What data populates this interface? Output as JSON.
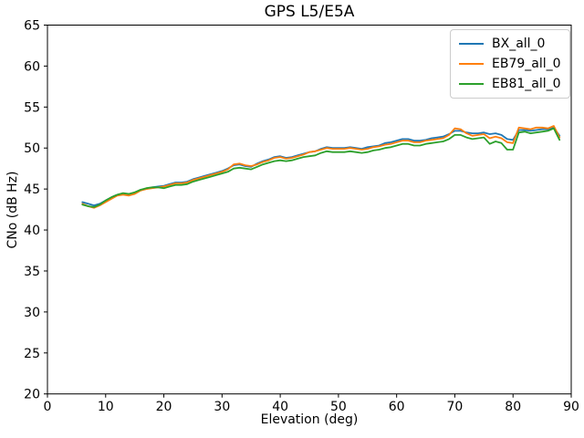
{
  "chart_data": {
    "type": "line",
    "title": "GPS L5/E5A",
    "xlabel": "Elevation (deg)",
    "ylabel": "CNo (dB Hz)",
    "xlim": [
      0,
      90
    ],
    "ylim": [
      20,
      65
    ],
    "x_ticks": [
      0,
      10,
      20,
      30,
      40,
      50,
      60,
      70,
      80,
      90
    ],
    "y_ticks": [
      20,
      25,
      30,
      35,
      40,
      45,
      50,
      55,
      60,
      65
    ],
    "grid": false,
    "legend_position": "upper right",
    "x": [
      6,
      7,
      8,
      9,
      10,
      11,
      12,
      13,
      14,
      15,
      16,
      17,
      18,
      19,
      20,
      21,
      22,
      23,
      24,
      25,
      26,
      27,
      28,
      29,
      30,
      31,
      32,
      33,
      34,
      35,
      36,
      37,
      38,
      39,
      40,
      41,
      42,
      43,
      44,
      45,
      46,
      47,
      48,
      49,
      50,
      51,
      52,
      53,
      54,
      55,
      56,
      57,
      58,
      59,
      60,
      61,
      62,
      63,
      64,
      65,
      66,
      67,
      68,
      69,
      70,
      71,
      72,
      73,
      74,
      75,
      76,
      77,
      78,
      79,
      80,
      81,
      82,
      83,
      84,
      85,
      86,
      87,
      88
    ],
    "series": [
      {
        "name": "BX_all_0",
        "color": "#1f77b4",
        "values": [
          43.4,
          43.2,
          43.0,
          43.2,
          43.6,
          44.0,
          44.3,
          44.4,
          44.3,
          44.5,
          44.9,
          45.0,
          45.2,
          45.3,
          45.4,
          45.6,
          45.8,
          45.8,
          45.9,
          46.2,
          46.4,
          46.6,
          46.8,
          47.0,
          47.2,
          47.5,
          47.9,
          48.0,
          47.8,
          47.7,
          48.1,
          48.4,
          48.6,
          48.9,
          49.0,
          48.8,
          48.9,
          49.1,
          49.3,
          49.5,
          49.6,
          49.9,
          50.1,
          50.0,
          50.0,
          50.0,
          50.1,
          50.0,
          49.9,
          50.1,
          50.2,
          50.3,
          50.6,
          50.7,
          50.9,
          51.1,
          51.1,
          50.9,
          50.9,
          51.0,
          51.2,
          51.3,
          51.4,
          51.7,
          52.1,
          52.1,
          51.9,
          51.8,
          51.8,
          51.9,
          51.7,
          51.8,
          51.6,
          51.1,
          51.0,
          52.2,
          52.2,
          52.1,
          52.2,
          52.3,
          52.3,
          52.5,
          51.5
        ]
      },
      {
        "name": "EB79_all_0",
        "color": "#ff7f0e",
        "values": [
          43.2,
          42.9,
          42.7,
          43.0,
          43.4,
          43.8,
          44.2,
          44.3,
          44.2,
          44.4,
          44.8,
          45.0,
          45.1,
          45.2,
          45.3,
          45.5,
          45.7,
          45.7,
          45.8,
          46.1,
          46.3,
          46.5,
          46.7,
          46.9,
          47.1,
          47.4,
          48.0,
          48.1,
          47.9,
          47.8,
          48.0,
          48.3,
          48.5,
          48.8,
          48.9,
          48.7,
          48.8,
          49.0,
          49.2,
          49.5,
          49.6,
          49.8,
          50.0,
          49.9,
          49.9,
          49.9,
          50.0,
          49.9,
          49.8,
          49.9,
          50.1,
          50.2,
          50.4,
          50.5,
          50.7,
          50.9,
          50.9,
          50.7,
          50.7,
          50.9,
          51.0,
          51.1,
          51.2,
          51.6,
          52.4,
          52.3,
          51.8,
          51.5,
          51.6,
          51.7,
          51.2,
          51.4,
          51.2,
          50.7,
          50.6,
          52.5,
          52.4,
          52.3,
          52.5,
          52.5,
          52.4,
          52.7,
          51.3
        ]
      },
      {
        "name": "EB81_all_0",
        "color": "#2ca02c",
        "values": [
          43.1,
          42.9,
          42.8,
          43.1,
          43.6,
          44.0,
          44.3,
          44.5,
          44.4,
          44.6,
          44.9,
          45.1,
          45.2,
          45.2,
          45.1,
          45.3,
          45.5,
          45.5,
          45.6,
          45.9,
          46.1,
          46.3,
          46.5,
          46.7,
          46.9,
          47.1,
          47.5,
          47.6,
          47.5,
          47.4,
          47.7,
          48.0,
          48.2,
          48.4,
          48.5,
          48.4,
          48.5,
          48.7,
          48.9,
          49.0,
          49.1,
          49.4,
          49.6,
          49.5,
          49.5,
          49.5,
          49.6,
          49.5,
          49.4,
          49.5,
          49.7,
          49.8,
          50.0,
          50.1,
          50.3,
          50.5,
          50.5,
          50.3,
          50.3,
          50.5,
          50.6,
          50.7,
          50.8,
          51.1,
          51.6,
          51.6,
          51.3,
          51.1,
          51.2,
          51.3,
          50.5,
          50.8,
          50.6,
          49.8,
          49.8,
          51.9,
          52.0,
          51.8,
          51.9,
          52.0,
          52.1,
          52.4,
          51.0
        ]
      }
    ]
  }
}
